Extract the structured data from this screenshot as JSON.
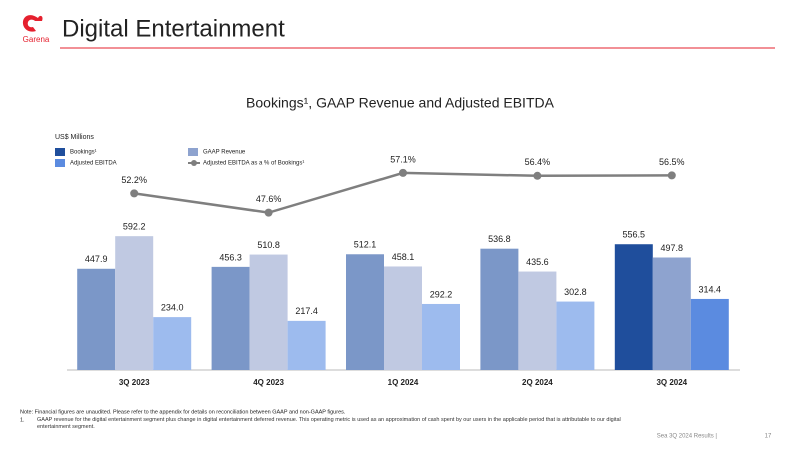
{
  "header": {
    "logo_text": "Garena",
    "title": "Digital Entertainment"
  },
  "chart_data": {
    "type": "bar",
    "title": "Bookings¹, GAAP Revenue and Adjusted EBITDA",
    "unit_label": "US$ Millions",
    "categories": [
      "3Q 2023",
      "4Q 2023",
      "1Q 2024",
      "2Q 2024",
      "3Q 2024"
    ],
    "ylim": [
      0,
      1000
    ],
    "y2lim": [
      10,
      64
    ],
    "series": [
      {
        "name": "Bookings¹",
        "color": "#1f4e9c",
        "point_colors": [
          "#7b97c8",
          "#7b97c8",
          "#7b97c8",
          "#7b97c8",
          "#1f4e9c"
        ],
        "values": [
          447.9,
          456.3,
          512.1,
          536.8,
          556.5
        ],
        "value_labels": [
          "447.9",
          "456.3",
          "512.1",
          "536.8",
          "556.5"
        ]
      },
      {
        "name": "GAAP Revenue",
        "color": "#8ea3cf",
        "point_colors": [
          "#c0c9e2",
          "#c0c9e2",
          "#c0c9e2",
          "#c0c9e2",
          "#8ea3cf"
        ],
        "values": [
          592.2,
          510.8,
          458.1,
          435.6,
          497.8
        ],
        "value_labels": [
          "592.2",
          "510.8",
          "458.1",
          "435.6",
          "497.8"
        ]
      },
      {
        "name": "Adjusted EBITDA",
        "color": "#5b8be0",
        "point_colors": [
          "#9dbbee",
          "#9dbbee",
          "#9dbbee",
          "#9dbbee",
          "#5b8be0"
        ],
        "values": [
          234.0,
          217.4,
          292.2,
          302.8,
          314.4
        ],
        "value_labels": [
          "234.0",
          "217.4",
          "292.2",
          "302.8",
          "314.4"
        ]
      },
      {
        "name": "Adjusted EBITDA as a % of Bookings¹",
        "type": "line",
        "axis": "y2",
        "color": "#7f7f7f",
        "values": [
          52.2,
          47.6,
          57.1,
          56.4,
          56.5
        ],
        "value_labels": [
          "52.2%",
          "47.6%",
          "57.1%",
          "56.4%",
          "56.5%"
        ]
      }
    ]
  },
  "notes": {
    "note": "Note: Financial figures are unaudited. Please refer to the appendix for details on reconciliation between GAAP and non-GAAP figures.",
    "footnote_marker": "1.",
    "footnote": "GAAP revenue for the digital entertainment segment plus change in digital entertainment deferred revenue. This operating metric is used as an approximation of cash spent by our users in the applicable period that is attributable to our digital entertainment segment."
  },
  "footer": {
    "text": "Sea 3Q 2024 Results |",
    "page": "17"
  }
}
